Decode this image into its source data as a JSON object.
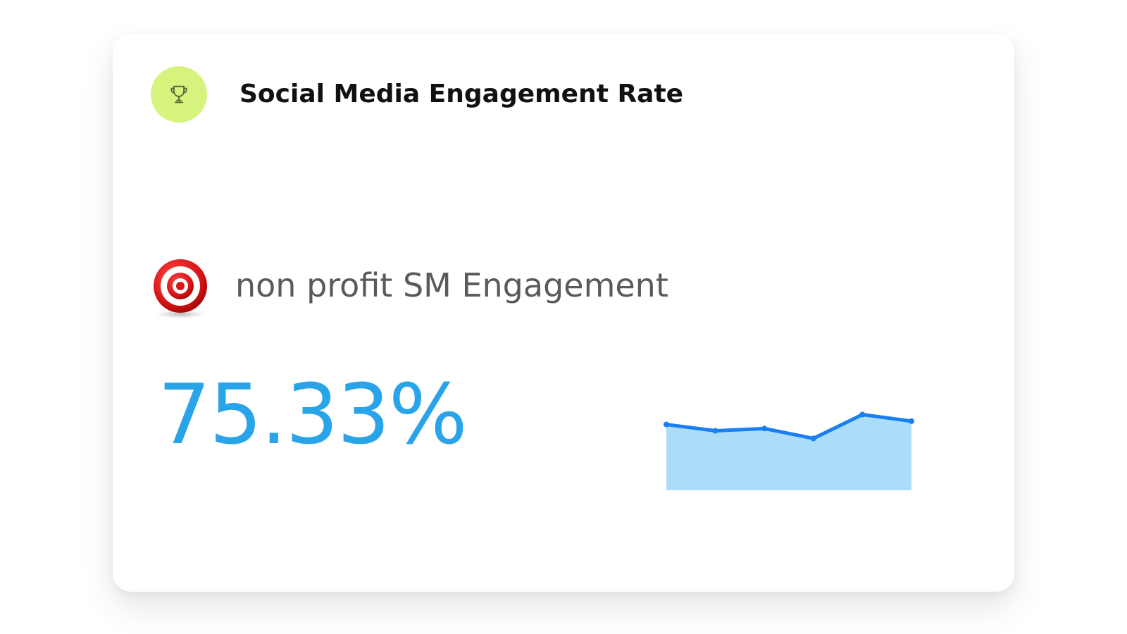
{
  "widget": {
    "title": "Social Media Engagement Rate",
    "title_icon": "trophy-icon",
    "title_icon_bg": "#d6f37e",
    "goal": {
      "icon": "target-bullseye-icon",
      "label": "non profit SM Engagement"
    },
    "value": "75.33%",
    "value_color": "#2aa4e8"
  },
  "chart_data": {
    "type": "area",
    "x": [
      1,
      2,
      3,
      4,
      5,
      6
    ],
    "values": [
      74.6,
      73.2,
      73.7,
      71.5,
      76.8,
      75.33
    ],
    "ylim": [
      60,
      80
    ],
    "grid": false,
    "line_color": "#1a7ff0",
    "fill_color": "#abdcf8"
  }
}
